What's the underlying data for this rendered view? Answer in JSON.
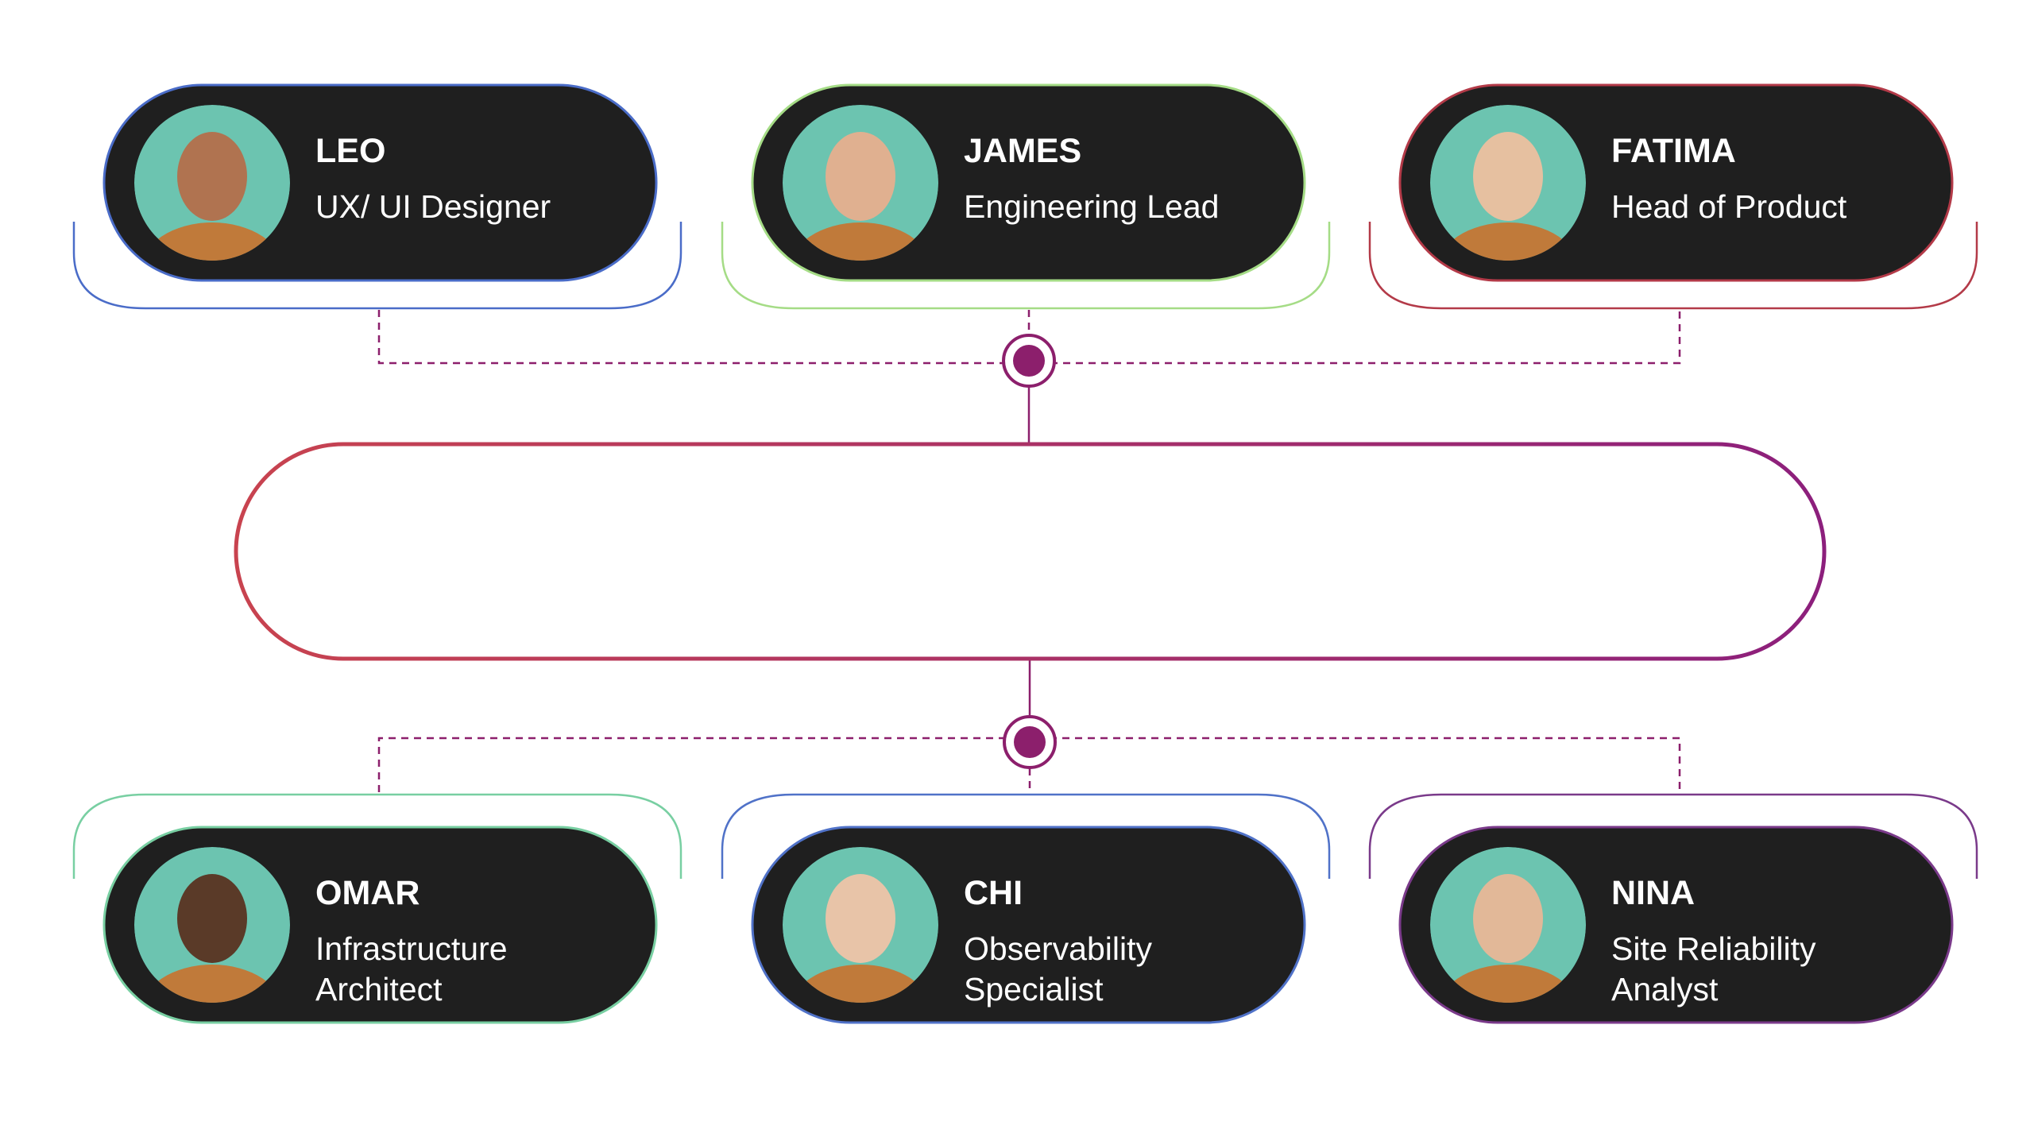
{
  "top": [
    {
      "name": "LEO",
      "role": [
        "UX/ UI Designer"
      ]
    },
    {
      "name": "JAMES",
      "role": [
        "Engineering Lead"
      ]
    },
    {
      "name": "FATIMA",
      "role": [
        "Head of Product"
      ]
    }
  ],
  "bottom": [
    {
      "name": "OMAR",
      "role": [
        "Infrastructure",
        "Architect"
      ]
    },
    {
      "name": "CHI",
      "role": [
        "Observability",
        "Specialist"
      ]
    },
    {
      "name": "NINA",
      "role": [
        "Site Reliability",
        "Analyst"
      ]
    }
  ]
}
